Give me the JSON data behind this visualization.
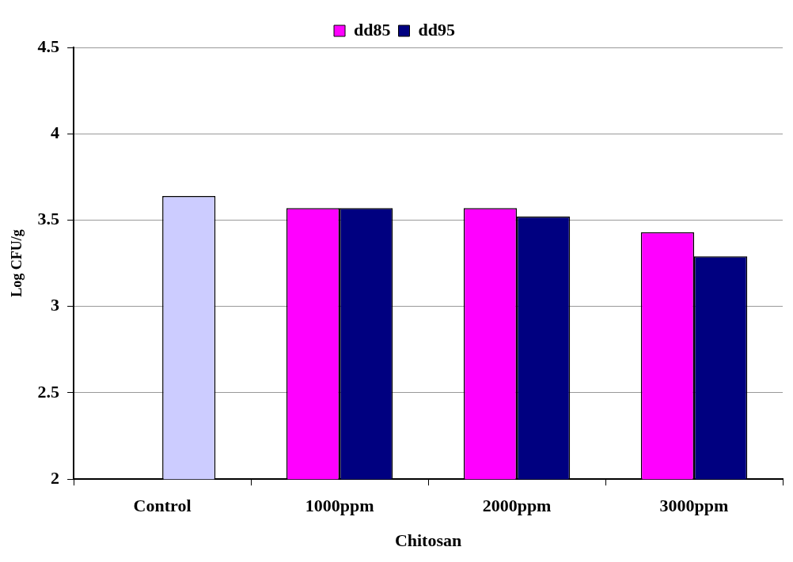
{
  "chart_data": {
    "type": "bar",
    "xlabel": "Chitosan",
    "ylabel": "Log CFU/g",
    "categories": [
      "Control",
      "1000ppm",
      "2000ppm",
      "3000ppm"
    ],
    "series": [
      {
        "name": "dd85",
        "color": "#ff00ff",
        "values": [
          null,
          3.57,
          3.57,
          3.43
        ]
      },
      {
        "name": "dd95",
        "color": "#000080",
        "colors": [
          "#ccccff",
          "#000080",
          "#000080",
          "#000080"
        ],
        "values": [
          3.64,
          3.57,
          3.52,
          3.29
        ]
      }
    ],
    "ylim": [
      2,
      4.5
    ],
    "yticks": [
      2,
      2.5,
      3,
      3.5,
      4,
      4.5
    ],
    "grid": "y",
    "legend": "top"
  }
}
